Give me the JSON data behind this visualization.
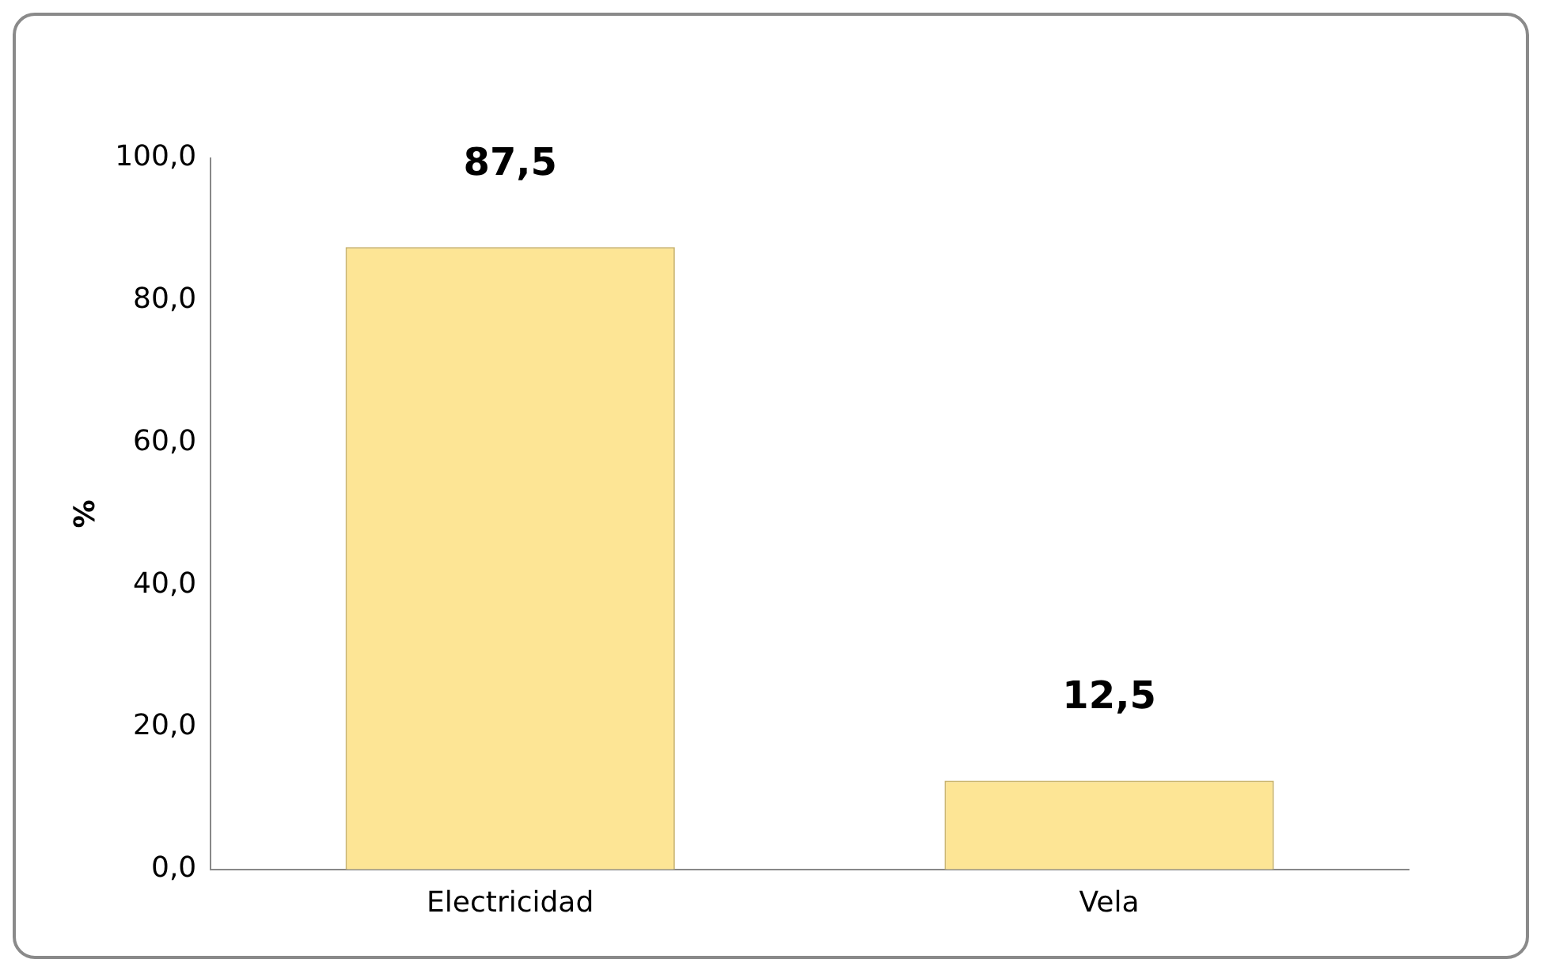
{
  "chart_data": {
    "type": "bar",
    "ylabel": "%",
    "categories": [
      "Electricidad",
      "Vela"
    ],
    "values": [
      87.5,
      12.5
    ],
    "value_labels": [
      "87,5",
      "12,5"
    ],
    "color": "#fde595",
    "ylim": [
      0,
      100
    ],
    "yticks": [
      {
        "value": 0,
        "label": "0,0"
      },
      {
        "value": 20,
        "label": "20,0"
      },
      {
        "value": 40,
        "label": "40,0"
      },
      {
        "value": 60,
        "label": "60,0"
      },
      {
        "value": 80,
        "label": "80,0"
      },
      {
        "value": 100,
        "label": "100,0"
      }
    ],
    "grid": false,
    "legend": false
  }
}
